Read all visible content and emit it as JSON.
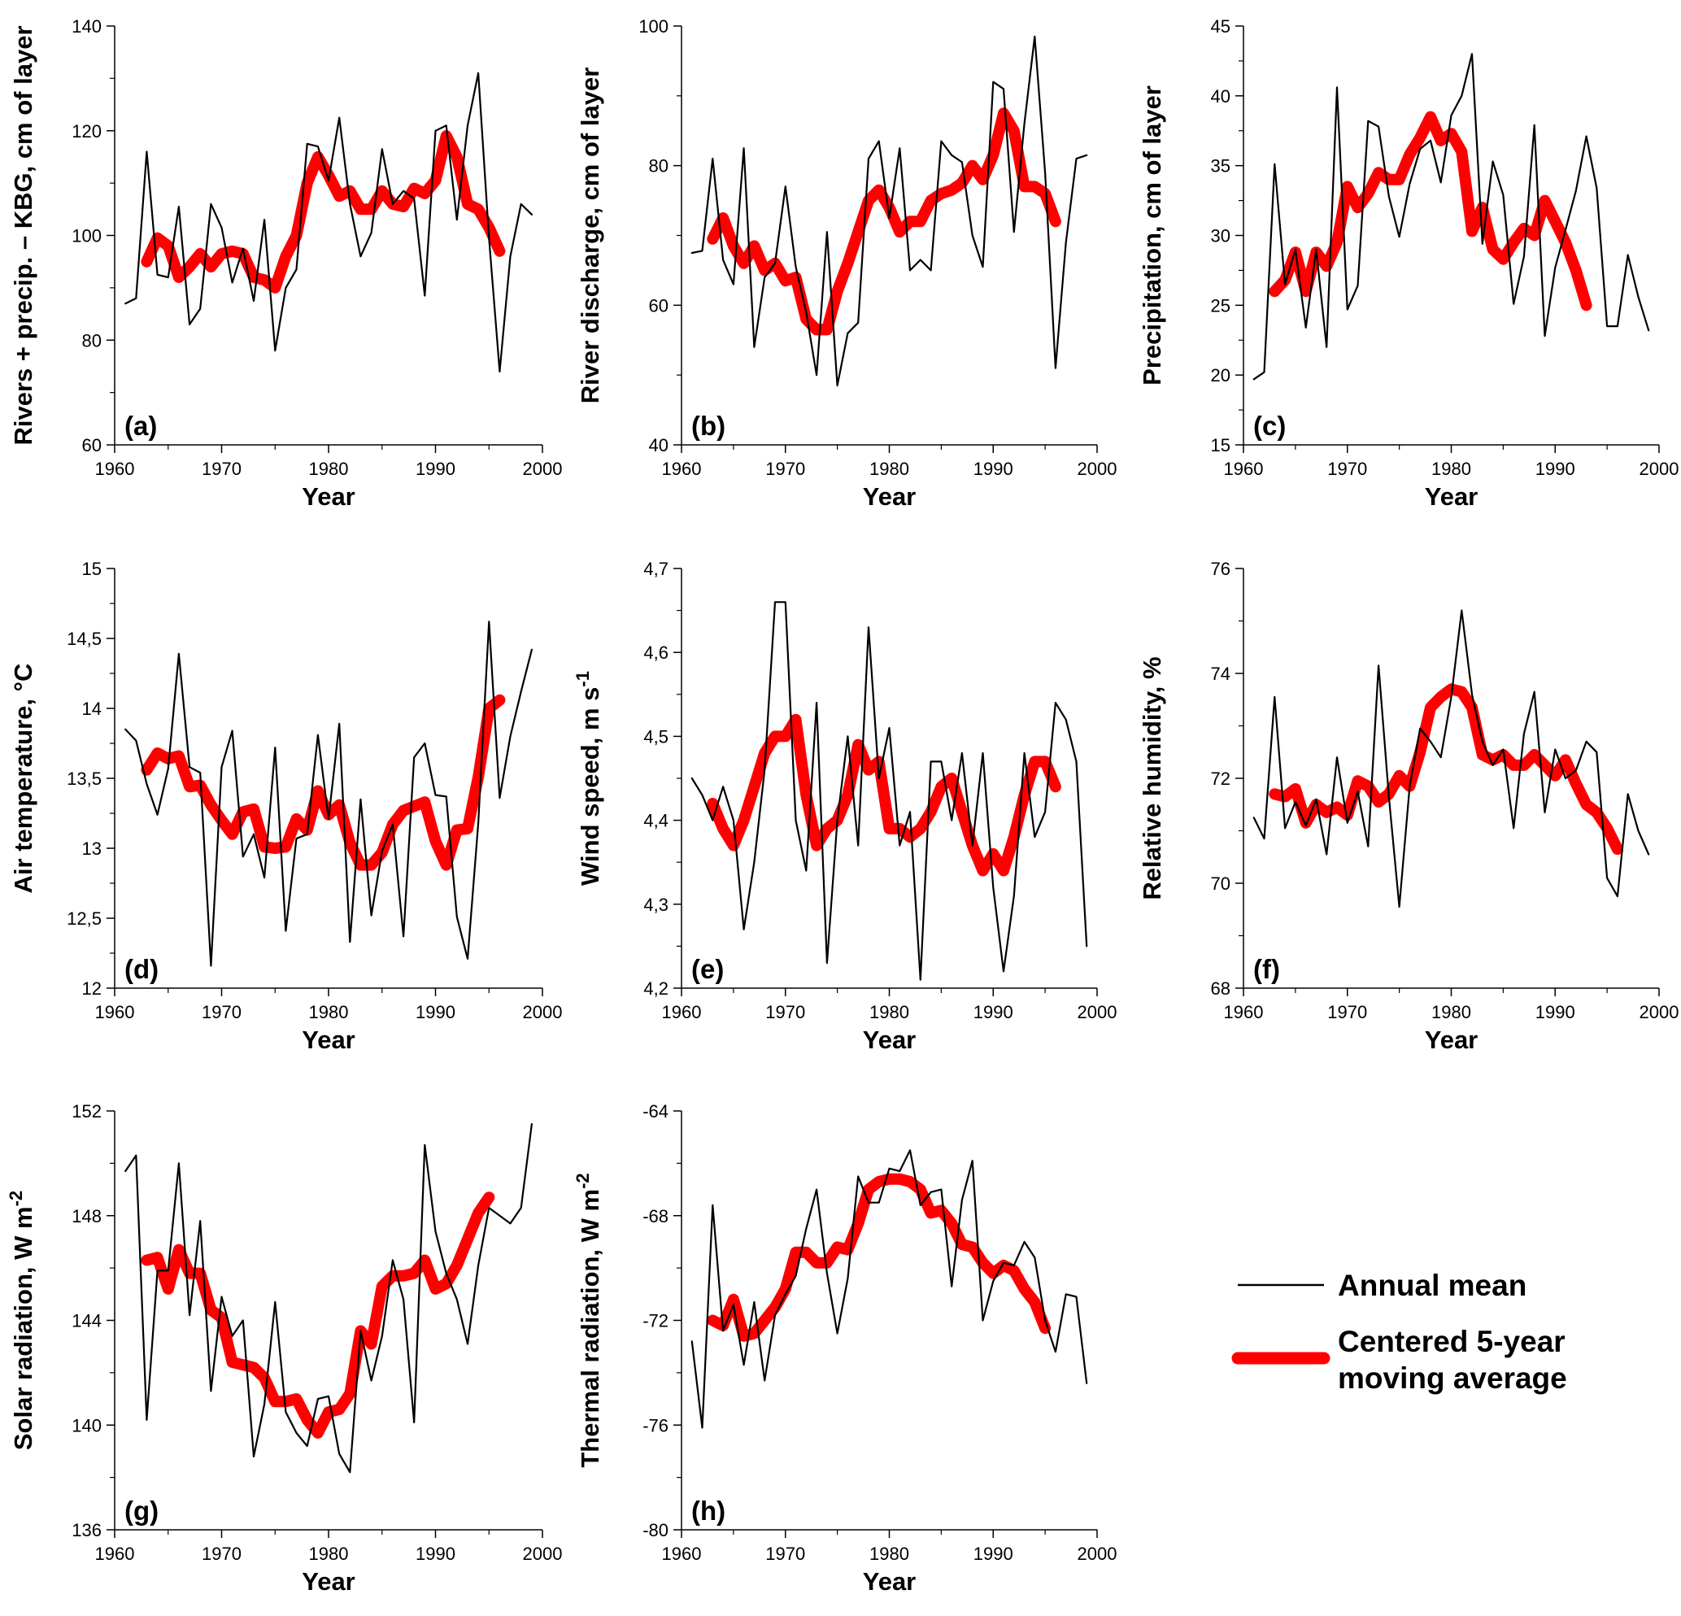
{
  "colors": {
    "annual": "#000000",
    "moving": "#ff0000"
  },
  "legend": {
    "annual_label": "Annual mean",
    "moving_label_line1": "Centered 5-year",
    "moving_label_line2": "moving average"
  },
  "chart_data": [
    {
      "type": "line",
      "panel": "(a)",
      "xlabel": "Year",
      "ylabel_parts": [
        "Rivers + precip. – KBG, cm of layer"
      ],
      "xlim": [
        1960,
        2000
      ],
      "xticks": [
        "1960",
        "1970",
        "1980",
        "1990",
        "2000"
      ],
      "ylim": [
        60,
        140
      ],
      "yticks": [
        "60",
        "80",
        "100",
        "120",
        "140"
      ],
      "series": [
        {
          "name": "Annual mean",
          "x_start": 1961,
          "values": [
            87,
            88,
            116,
            92.5,
            92,
            105.5,
            83,
            86,
            106,
            101.5,
            91,
            97.5,
            87.5,
            103,
            78,
            90,
            93.5,
            117.5,
            117,
            110.5,
            122.5,
            106,
            96,
            100.5,
            116.5,
            106,
            108.5,
            107,
            88.5,
            120,
            121,
            103,
            121,
            131,
            99.5,
            74,
            96,
            106,
            104
          ]
        },
        {
          "name": "Centered 5-year moving average",
          "x_start": 1963,
          "values": [
            95,
            99.5,
            98,
            92,
            94,
            96.5,
            94,
            96.5,
            97,
            96.5,
            92,
            91.5,
            90,
            96,
            100,
            110,
            115,
            111.5,
            107.5,
            108.5,
            105,
            105,
            108.5,
            106,
            105.5,
            109,
            108,
            110.5,
            119,
            115,
            106,
            105,
            101.5,
            97
          ]
        }
      ]
    },
    {
      "type": "line",
      "panel": "(b)",
      "xlabel": "Year",
      "ylabel_parts": [
        "River discharge, cm of layer"
      ],
      "xlim": [
        1960,
        2000
      ],
      "xticks": [
        "1960",
        "1970",
        "1980",
        "1990",
        "2000"
      ],
      "ylim": [
        40,
        100
      ],
      "yticks": [
        "40",
        "60",
        "80",
        "100"
      ],
      "series": [
        {
          "name": "Annual mean",
          "x_start": 1961,
          "values": [
            67.5,
            67.8,
            81,
            66.5,
            63,
            82.5,
            54,
            64,
            66,
            77,
            65.5,
            59,
            50,
            70.5,
            48.5,
            56,
            57.5,
            81,
            83.5,
            72.5,
            82.5,
            65,
            66.5,
            65,
            83.5,
            81.5,
            80.5,
            70,
            65.5,
            92,
            91,
            70.5,
            86,
            98.5,
            79,
            51,
            69,
            81,
            81.5
          ]
        },
        {
          "name": "Centered 5-year moving average",
          "x_start": 1963,
          "values": [
            69.5,
            72.5,
            68.5,
            66,
            68.5,
            65,
            66,
            63.5,
            64,
            58,
            56.5,
            56.5,
            62,
            66,
            70.5,
            75,
            76.5,
            74,
            70.5,
            72,
            72,
            75,
            76,
            76.5,
            77.5,
            80,
            78,
            81.5,
            87.5,
            85,
            77,
            77,
            76,
            72
          ]
        }
      ]
    },
    {
      "type": "line",
      "panel": "(c)",
      "xlabel": "Year",
      "ylabel_parts": [
        "Precipitation, cm of layer"
      ],
      "xlim": [
        1960,
        2000
      ],
      "xticks": [
        "1960",
        "1970",
        "1980",
        "1990",
        "2000"
      ],
      "ylim": [
        15,
        45
      ],
      "yticks": [
        "15",
        "20",
        "25",
        "30",
        "35",
        "40",
        "45"
      ],
      "series": [
        {
          "name": "Annual mean",
          "x_start": 1961,
          "values": [
            19.7,
            20.2,
            35.1,
            26.5,
            29,
            23.4,
            29,
            22,
            40.6,
            24.7,
            26.4,
            38.2,
            37.8,
            32.8,
            29.9,
            33.7,
            36.2,
            36.8,
            33.8,
            38.6,
            40,
            43,
            29.4,
            35.3,
            32.9,
            25.1,
            28.5,
            37.9,
            22.8,
            27.7,
            30.4,
            33.2,
            37.1,
            33.4,
            23.5,
            23.5,
            28.6,
            25.6,
            23.2
          ]
        },
        {
          "name": "Centered 5-year moving average",
          "x_start": 1963,
          "values": [
            26,
            26.8,
            28.8,
            26,
            28.8,
            27.8,
            29.5,
            33.5,
            32,
            33,
            34.5,
            34,
            34,
            35.8,
            37,
            38.5,
            36.8,
            37.3,
            36,
            30.3,
            32,
            29,
            28.3,
            29.5,
            30.5,
            30,
            32.5,
            31,
            29.5,
            27.5,
            25
          ]
        }
      ]
    },
    {
      "type": "line",
      "panel": "(d)",
      "xlabel": "Year",
      "ylabel_parts": [
        "Air temperature, °C"
      ],
      "xlim": [
        1960,
        2000
      ],
      "xticks": [
        "1960",
        "1970",
        "1980",
        "1990",
        "2000"
      ],
      "ylim": [
        12,
        15
      ],
      "yticks": [
        "12",
        "12,5",
        "13",
        "13,5",
        "14",
        "14,5",
        "15"
      ],
      "series": [
        {
          "name": "Annual mean",
          "x_start": 1961,
          "values": [
            13.85,
            13.77,
            13.46,
            13.24,
            13.57,
            14.39,
            13.58,
            13.54,
            12.16,
            13.58,
            13.84,
            12.94,
            13.1,
            12.79,
            13.72,
            12.41,
            13.07,
            13.1,
            13.81,
            13.21,
            13.89,
            12.33,
            13.35,
            12.52,
            12.98,
            13.17,
            12.37,
            13.65,
            13.75,
            13.38,
            13.37,
            12.51,
            12.21,
            13.18,
            14.62,
            13.36,
            13.8,
            14.12,
            14.42
          ]
        },
        {
          "name": "Centered 5-year moving average",
          "x_start": 1963,
          "values": [
            13.56,
            13.68,
            13.64,
            13.66,
            13.44,
            13.45,
            13.31,
            13.2,
            13.1,
            13.26,
            13.28,
            13.01,
            13,
            13.01,
            13.21,
            13.13,
            13.41,
            13.24,
            13.31,
            13.04,
            12.88,
            12.88,
            12.97,
            13.17,
            13.27,
            13.3,
            13.33,
            13.05,
            12.88,
            13.13,
            13.14,
            13.51,
            14,
            14.06
          ]
        }
      ]
    },
    {
      "type": "line",
      "panel": "(e)",
      "xlabel": "Year",
      "ylabel_parts": [
        "Wind speed, m s",
        "-1"
      ],
      "xlim": [
        1960,
        2000
      ],
      "xticks": [
        "1960",
        "1970",
        "1980",
        "1990",
        "2000"
      ],
      "ylim": [
        4.2,
        4.7
      ],
      "yticks": [
        "4,2",
        "4,3",
        "4,4",
        "4,5",
        "4,6",
        "4,7"
      ],
      "series": [
        {
          "name": "Annual mean",
          "x_start": 1961,
          "values": [
            4.45,
            4.43,
            4.4,
            4.44,
            4.4,
            4.27,
            4.35,
            4.46,
            4.66,
            4.66,
            4.4,
            4.34,
            4.54,
            4.23,
            4.4,
            4.5,
            4.37,
            4.63,
            4.45,
            4.51,
            4.37,
            4.41,
            4.21,
            4.47,
            4.47,
            4.4,
            4.48,
            4.37,
            4.48,
            4.32,
            4.22,
            4.31,
            4.48,
            4.38,
            4.41,
            4.54,
            4.52,
            4.47,
            4.25
          ]
        },
        {
          "name": "Centered 5-year moving average",
          "x_start": 1963,
          "values": [
            4.42,
            4.39,
            4.37,
            4.4,
            4.44,
            4.48,
            4.5,
            4.5,
            4.52,
            4.43,
            4.37,
            4.39,
            4.4,
            4.43,
            4.49,
            4.46,
            4.47,
            4.39,
            4.39,
            4.38,
            4.39,
            4.41,
            4.44,
            4.45,
            4.41,
            4.37,
            4.34,
            4.36,
            4.34,
            4.38,
            4.43,
            4.47,
            4.47,
            4.44
          ]
        }
      ]
    },
    {
      "type": "line",
      "panel": "(f)",
      "xlabel": "Year",
      "ylabel_parts": [
        "Relative humidity, %"
      ],
      "xlim": [
        1960,
        2000
      ],
      "xticks": [
        "1960",
        "1970",
        "1980",
        "1990",
        "2000"
      ],
      "ylim": [
        68,
        76
      ],
      "yticks": [
        "68",
        "70",
        "72",
        "74",
        "76"
      ],
      "series": [
        {
          "name": "Annual mean",
          "x_start": 1961,
          "values": [
            71.25,
            70.85,
            73.55,
            71.05,
            71.55,
            71.1,
            71.6,
            70.55,
            72.4,
            71.15,
            71.75,
            70.7,
            74.15,
            71.65,
            69.55,
            71.85,
            72.95,
            72.7,
            72.4,
            73.55,
            75.2,
            73.6,
            72.7,
            72.25,
            72.55,
            71.05,
            72.85,
            73.65,
            71.35,
            72.55,
            72,
            72.15,
            72.7,
            72.5,
            70.1,
            69.75,
            71.7,
            71,
            70.55
          ]
        },
        {
          "name": "Centered 5-year moving average",
          "x_start": 1963,
          "values": [
            71.7,
            71.65,
            71.8,
            71.15,
            71.5,
            71.35,
            71.45,
            71.3,
            71.95,
            71.85,
            71.55,
            71.7,
            72.05,
            71.85,
            72.5,
            73.35,
            73.55,
            73.7,
            73.65,
            73.35,
            72.45,
            72.35,
            72.45,
            72.25,
            72.25,
            72.45,
            72.25,
            72.05,
            72.35,
            71.9,
            71.5,
            71.35,
            71.05,
            70.65
          ]
        }
      ]
    },
    {
      "type": "line",
      "panel": "(g)",
      "xlabel": "Year",
      "ylabel_parts": [
        "Solar radiation, W m",
        "-2"
      ],
      "xlim": [
        1960,
        2000
      ],
      "xticks": [
        "1960",
        "1970",
        "1980",
        "1990",
        "2000"
      ],
      "ylim": [
        136,
        152
      ],
      "yticks": [
        "136",
        "140",
        "144",
        "148",
        "152"
      ],
      "series": [
        {
          "name": "Annual mean",
          "x_start": 1961,
          "values": [
            149.7,
            150.3,
            140.2,
            145.9,
            145.9,
            150,
            144.2,
            147.8,
            141.3,
            144.9,
            143.4,
            144,
            138.8,
            140.8,
            144.7,
            140.5,
            139.7,
            139.2,
            141,
            141.1,
            138.9,
            138.2,
            143.6,
            141.7,
            143.4,
            146.3,
            144.8,
            140.1,
            150.7,
            147.4,
            145.8,
            144.8,
            143.1,
            146.1,
            148.3,
            148,
            147.7,
            148.3,
            151.5
          ]
        },
        {
          "name": "Centered 5-year moving average",
          "x_start": 1963,
          "values": [
            146.3,
            146.4,
            145.2,
            146.7,
            145.8,
            145.8,
            144.4,
            144.1,
            142.4,
            142.3,
            142.2,
            141.8,
            140.9,
            140.9,
            141,
            140.2,
            139.7,
            140.5,
            140.6,
            141.2,
            143.6,
            143.1,
            145.3,
            145.7,
            145.7,
            145.8,
            146.3,
            145.2,
            145.4,
            146.1,
            147.1,
            148.1,
            148.7
          ]
        }
      ]
    },
    {
      "type": "line",
      "panel": "(h)",
      "xlabel": "Year",
      "ylabel_parts": [
        "Thermal radiation, W m",
        "-2"
      ],
      "xlim": [
        1960,
        2000
      ],
      "xticks": [
        "1960",
        "1970",
        "1980",
        "1990",
        "2000"
      ],
      "ylim": [
        -80,
        -64
      ],
      "yticks": [
        "-80",
        "-76",
        "-72",
        "-68",
        "-64"
      ],
      "series": [
        {
          "name": "Annual mean",
          "x_start": 1961,
          "values": [
            -72.8,
            -76.1,
            -67.6,
            -72.4,
            -71.4,
            -73.7,
            -71.3,
            -74.3,
            -71.8,
            -71,
            -70.3,
            -68.5,
            -67,
            -70.2,
            -72.5,
            -70.4,
            -66.5,
            -67.5,
            -67.5,
            -66.2,
            -66.3,
            -65.5,
            -67.6,
            -67.1,
            -67,
            -70.7,
            -67.4,
            -65.9,
            -72,
            -70.5,
            -69.8,
            -69.9,
            -69,
            -69.6,
            -72,
            -73.2,
            -71,
            -71.1,
            -74.4
          ]
        },
        {
          "name": "Centered 5-year moving average",
          "x_start": 1963,
          "values": [
            -72,
            -72.2,
            -71.2,
            -72.6,
            -72.5,
            -72,
            -71.5,
            -70.8,
            -69.4,
            -69.4,
            -69.8,
            -69.8,
            -69.2,
            -69.3,
            -68.3,
            -67,
            -66.7,
            -66.6,
            -66.6,
            -66.7,
            -67,
            -67.9,
            -67.8,
            -68.3,
            -69.1,
            -69.2,
            -69.8,
            -70.2,
            -69.9,
            -70.1,
            -70.8,
            -71.3,
            -72.3
          ]
        }
      ]
    }
  ]
}
